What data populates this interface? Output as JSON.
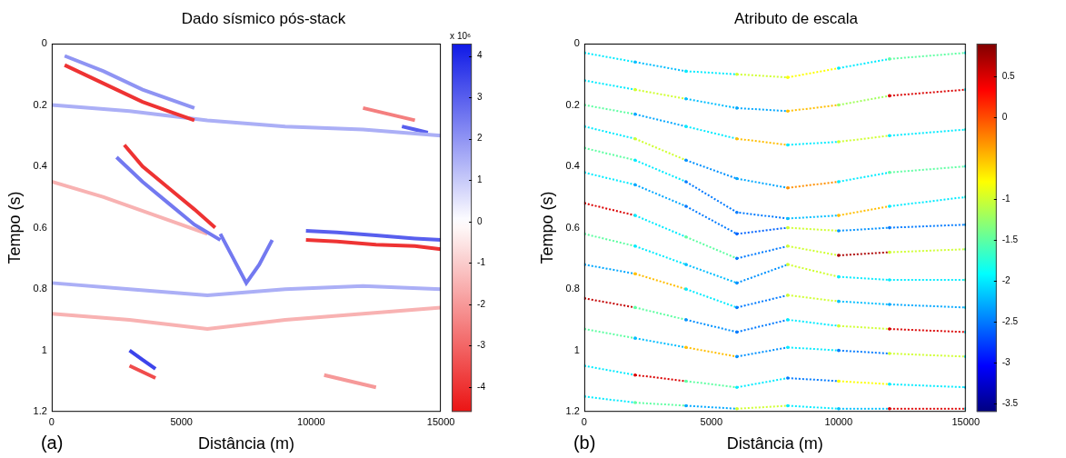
{
  "chart_data": [
    {
      "type": "line",
      "panel": "(a)",
      "title": "Dado sísmico pós-stack",
      "x_label": "Distância (m)",
      "y_label": "Tempo (s)",
      "xlim": [
        0,
        15000
      ],
      "xticks": [
        0,
        5000,
        10000,
        15000
      ],
      "ylim": [
        0,
        1.2
      ],
      "yticks": [
        0,
        0.2,
        0.4,
        0.6,
        0.8,
        1,
        1.2
      ],
      "grid": false,
      "colorbar": {
        "label": "x 10⁶",
        "range": [
          -4.6,
          4.3
        ],
        "ticks": [
          4,
          3,
          2,
          1,
          0,
          -1,
          -2,
          -3,
          -4
        ]
      },
      "series": [
        {
          "x": [
            500,
            2000,
            3500,
            5500
          ],
          "values": [
            0.04,
            0.09,
            0.15,
            0.21
          ],
          "amplitude": 2
        },
        {
          "x": [
            500,
            1500,
            2500,
            3500,
            4500,
            5500
          ],
          "values": [
            0.07,
            0.11,
            0.15,
            0.19,
            0.22,
            0.25
          ],
          "amplitude": -4
        },
        {
          "x": [
            0,
            3000,
            6000,
            9000,
            12000,
            15000
          ],
          "values": [
            0.2,
            0.22,
            0.25,
            0.27,
            0.28,
            0.3
          ],
          "amplitude": 1.5
        },
        {
          "x": [
            12000,
            13000,
            14000
          ],
          "values": [
            0.21,
            0.23,
            0.25
          ],
          "amplitude": -2.5
        },
        {
          "x": [
            13500,
            14000,
            14500
          ],
          "values": [
            0.27,
            0.28,
            0.29
          ],
          "amplitude": 3
        },
        {
          "x": [
            2800,
            3500,
            4500,
            5500,
            6300
          ],
          "values": [
            0.33,
            0.4,
            0.47,
            0.54,
            0.6
          ],
          "amplitude": -4
        },
        {
          "x": [
            2500,
            3500,
            4500,
            5500,
            6500
          ],
          "values": [
            0.37,
            0.45,
            0.52,
            0.59,
            0.64
          ],
          "amplitude": 2.5
        },
        {
          "x": [
            0,
            2000,
            4000,
            6000
          ],
          "values": [
            0.45,
            0.5,
            0.56,
            0.62
          ],
          "amplitude": -1.5
        },
        {
          "x": [
            9800,
            11000,
            12500,
            14000,
            15000
          ],
          "values": [
            0.61,
            0.615,
            0.625,
            0.635,
            0.64
          ],
          "amplitude": 3
        },
        {
          "x": [
            9800,
            11000,
            12500,
            14000,
            15000
          ],
          "values": [
            0.64,
            0.645,
            0.655,
            0.66,
            0.67
          ],
          "amplitude": -4
        },
        {
          "x": [
            6500,
            7000,
            7500,
            8000,
            8500
          ],
          "values": [
            0.62,
            0.7,
            0.78,
            0.72,
            0.64
          ],
          "amplitude": 2.5
        },
        {
          "x": [
            0,
            3000,
            6000,
            9000,
            12000,
            15000
          ],
          "values": [
            0.78,
            0.8,
            0.82,
            0.8,
            0.79,
            0.8
          ],
          "amplitude": 1.5
        },
        {
          "x": [
            0,
            3000,
            6000,
            9000,
            12000,
            15000
          ],
          "values": [
            0.88,
            0.9,
            0.93,
            0.9,
            0.88,
            0.86
          ],
          "amplitude": -1.5
        },
        {
          "x": [
            3000,
            3500,
            4000
          ],
          "values": [
            1.0,
            1.03,
            1.06
          ],
          "amplitude": 3.5
        },
        {
          "x": [
            3000,
            3500,
            4000
          ],
          "values": [
            1.05,
            1.07,
            1.09
          ],
          "amplitude": -3.5
        },
        {
          "x": [
            10500,
            11500,
            12500
          ],
          "values": [
            1.08,
            1.1,
            1.12
          ],
          "amplitude": -2
        }
      ]
    },
    {
      "type": "line",
      "panel": "(b)",
      "title": "Atributo de escala",
      "x_label": "Distância (m)",
      "y_label": "Tempo (s)",
      "xlim": [
        0,
        15000
      ],
      "xticks": [
        0,
        5000,
        10000,
        15000
      ],
      "ylim": [
        0,
        1.2
      ],
      "yticks": [
        0,
        0.2,
        0.4,
        0.6,
        0.8,
        1,
        1.2
      ],
      "grid": false,
      "marker": "dot",
      "colorbar": {
        "range": [
          -3.6,
          0.9
        ],
        "ticks": [
          0.5,
          0,
          -1,
          -1.5,
          -2,
          -2.5,
          -3,
          -3.5
        ]
      },
      "x": [
        0,
        2000,
        4000,
        6000,
        8000,
        10000,
        12000,
        15000
      ],
      "series": [
        {
          "values": [
            0.03,
            0.06,
            0.09,
            0.1,
            0.11,
            0.08,
            0.05,
            0.03
          ],
          "attribute": [
            -2,
            -2.2,
            -2,
            -1,
            -0.8,
            -2,
            -1.5,
            -2
          ]
        },
        {
          "values": [
            0.12,
            0.15,
            0.18,
            0.21,
            0.22,
            0.2,
            0.17,
            0.15
          ],
          "attribute": [
            -2,
            -1,
            -2.2,
            -2.3,
            -0.5,
            -1.2,
            0.5,
            -2
          ]
        },
        {
          "values": [
            0.2,
            0.23,
            0.27,
            0.31,
            0.33,
            0.32,
            0.3,
            0.28
          ],
          "attribute": [
            -1.5,
            -2.3,
            -2,
            -0.5,
            -2,
            -1,
            -2,
            -1.8
          ]
        },
        {
          "values": [
            0.27,
            0.31,
            0.38,
            0.44,
            0.47,
            0.45,
            0.42,
            0.4
          ],
          "attribute": [
            -2,
            -1,
            -2.4,
            -2.3,
            -0.3,
            -2,
            -1.5,
            -2
          ]
        },
        {
          "values": [
            0.34,
            0.38,
            0.45,
            0.55,
            0.57,
            0.56,
            0.53,
            0.5
          ],
          "attribute": [
            -1.5,
            -2,
            -2.5,
            -2.5,
            -2.2,
            -0.5,
            -2,
            -1.8
          ]
        },
        {
          "values": [
            0.42,
            0.46,
            0.53,
            0.62,
            0.6,
            0.61,
            0.6,
            0.59
          ],
          "attribute": [
            -2,
            -2.3,
            -2.5,
            -2.6,
            -1,
            -2.4,
            -2.5,
            -2.3
          ]
        },
        {
          "values": [
            0.52,
            0.56,
            0.63,
            0.7,
            0.66,
            0.69,
            0.68,
            0.67
          ],
          "attribute": [
            0.5,
            -2,
            -1.5,
            -2.5,
            -1,
            0.7,
            -1,
            -1.5
          ]
        },
        {
          "values": [
            0.62,
            0.66,
            0.72,
            0.78,
            0.72,
            0.76,
            0.77,
            0.77
          ],
          "attribute": [
            -1.5,
            -2,
            -2.2,
            -2.4,
            -1,
            -2,
            -2,
            -1.5
          ]
        },
        {
          "values": [
            0.72,
            0.75,
            0.8,
            0.86,
            0.82,
            0.84,
            0.85,
            0.86
          ],
          "attribute": [
            -2.3,
            -0.5,
            -2,
            -2.5,
            -1,
            -2.2,
            -2.3,
            -2
          ]
        },
        {
          "values": [
            0.83,
            0.86,
            0.9,
            0.94,
            0.9,
            0.92,
            0.93,
            0.94
          ],
          "attribute": [
            0.6,
            -1.5,
            -2.4,
            -2.5,
            -2,
            -1,
            0.5,
            -2
          ]
        },
        {
          "values": [
            0.93,
            0.96,
            0.99,
            1.02,
            0.99,
            1.0,
            1.01,
            1.02
          ],
          "attribute": [
            -1.5,
            -2.2,
            -0.5,
            -2.4,
            -2,
            -2.5,
            -1,
            -2
          ]
        },
        {
          "values": [
            1.05,
            1.08,
            1.1,
            1.12,
            1.09,
            1.1,
            1.11,
            1.12
          ],
          "attribute": [
            -2,
            0.5,
            -1.5,
            -2,
            -2.5,
            -0.8,
            -2,
            -2.2
          ]
        },
        {
          "values": [
            1.15,
            1.17,
            1.18,
            1.19,
            1.18,
            1.19,
            1.19,
            1.19
          ],
          "attribute": [
            -2,
            -1.5,
            -2.3,
            -1,
            -2,
            -2.2,
            0.5,
            -2
          ]
        }
      ]
    }
  ]
}
